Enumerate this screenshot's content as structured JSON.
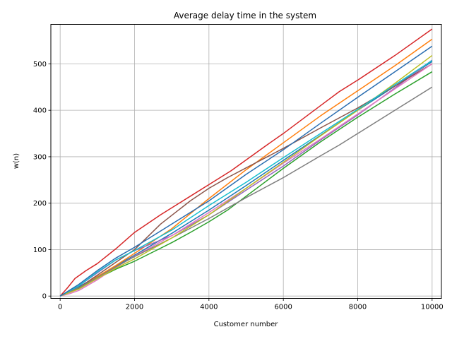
{
  "chart_data": {
    "type": "line",
    "title": "Average delay time in the system",
    "xlabel": "Customer number",
    "ylabel": "w(n)",
    "xlim": [
      -250,
      10250
    ],
    "ylim": [
      -5,
      585
    ],
    "xticks": [
      0,
      2000,
      4000,
      6000,
      8000,
      10000
    ],
    "yticks": [
      0,
      100,
      200,
      300,
      400,
      500
    ],
    "grid": true,
    "series": [
      {
        "color": "#1f77b4",
        "x": [
          0,
          500,
          1000,
          1500,
          2000,
          3000,
          4000,
          5000,
          6000,
          7000,
          8000,
          9000,
          10000
        ],
        "y": [
          0,
          20,
          42,
          65,
          88,
          135,
          185,
          238,
          292,
          346,
          400,
          452,
          505
        ]
      },
      {
        "color": "#ff7f0e",
        "x": [
          0,
          500,
          1000,
          1500,
          2000,
          3000,
          4000,
          5000,
          6000,
          7000,
          8000,
          9000,
          10000
        ],
        "y": [
          0,
          18,
          42,
          66,
          92,
          145,
          210,
          272,
          330,
          388,
          442,
          496,
          553
        ]
      },
      {
        "color": "#2ca02c",
        "x": [
          0,
          500,
          1000,
          1500,
          2000,
          2500,
          3000,
          3500,
          4000,
          4500,
          5000,
          6000,
          7000,
          8000,
          9000,
          10000
        ],
        "y": [
          0,
          17,
          38,
          58,
          75,
          95,
          115,
          137,
          160,
          185,
          215,
          275,
          332,
          385,
          435,
          483
        ]
      },
      {
        "color": "#d62728",
        "x": [
          0,
          200,
          400,
          700,
          1000,
          1500,
          2000,
          2700,
          3500,
          4000,
          4600,
          5500,
          6000,
          7000,
          7500,
          8000,
          9000,
          10000
        ],
        "y": [
          0,
          18,
          38,
          55,
          70,
          102,
          137,
          175,
          215,
          240,
          270,
          322,
          350,
          410,
          440,
          465,
          518,
          575
        ]
      },
      {
        "color": "#9467bd",
        "x": [
          0,
          500,
          1000,
          1500,
          2000,
          3000,
          4000,
          5000,
          6000,
          7000,
          8000,
          9000,
          10000
        ],
        "y": [
          0,
          22,
          50,
          78,
          98,
          130,
          175,
          228,
          280,
          336,
          390,
          448,
          508
        ]
      },
      {
        "color": "#8c564b",
        "x": [
          0,
          500,
          1000,
          1500,
          2000,
          2700,
          3500,
          4000,
          4500,
          5000,
          6000,
          7000,
          8000,
          9000,
          10000
        ],
        "y": [
          0,
          18,
          45,
          73,
          100,
          155,
          205,
          232,
          255,
          276,
          318,
          362,
          405,
          452,
          500
        ]
      },
      {
        "color": "#e377c2",
        "x": [
          0,
          250,
          500,
          1000,
          1500,
          2000,
          3000,
          4000,
          5000,
          6000,
          7000,
          8000,
          9000,
          10000
        ],
        "y": [
          0,
          5,
          12,
          35,
          62,
          86,
          130,
          180,
          232,
          286,
          338,
          392,
          446,
          500
        ]
      },
      {
        "color": "#7f7f7f",
        "x": [
          0,
          500,
          1000,
          1500,
          2000,
          3000,
          4000,
          5000,
          6000,
          7000,
          7500,
          8000,
          9000,
          10000
        ],
        "y": [
          0,
          18,
          40,
          63,
          85,
          125,
          167,
          212,
          255,
          302,
          325,
          350,
          400,
          450
        ]
      },
      {
        "color": "#bcbd22",
        "x": [
          0,
          500,
          1000,
          1500,
          2000,
          3000,
          4000,
          5000,
          6000,
          7000,
          8000,
          9000,
          10000
        ],
        "y": [
          0,
          15,
          38,
          60,
          80,
          125,
          175,
          232,
          288,
          345,
          400,
          458,
          518
        ]
      },
      {
        "color": "#17becf",
        "x": [
          0,
          500,
          1000,
          1500,
          2000,
          3000,
          4000,
          5000,
          6000,
          7000,
          8000,
          9000,
          10000
        ],
        "y": [
          0,
          22,
          52,
          78,
          98,
          142,
          195,
          245,
          298,
          350,
          402,
          455,
          507
        ]
      },
      {
        "color": "#2a6db0",
        "x": [
          0,
          500,
          1000,
          1500,
          2000,
          3000,
          4000,
          5000,
          6000,
          7000,
          8000,
          9000,
          10000
        ],
        "y": [
          0,
          25,
          55,
          82,
          105,
          155,
          205,
          262,
          315,
          372,
          428,
          483,
          538
        ]
      }
    ]
  }
}
